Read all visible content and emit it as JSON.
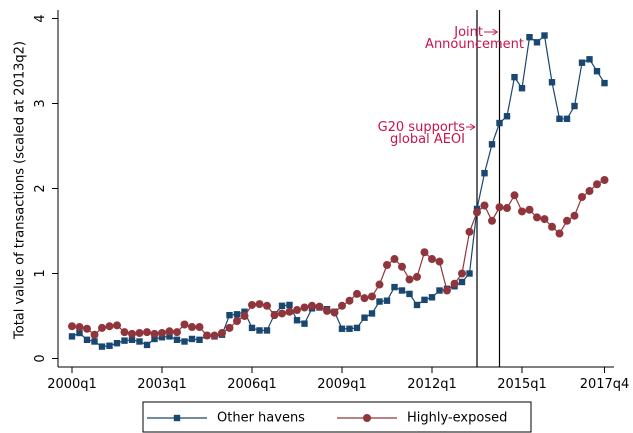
{
  "chart_data": {
    "type": "line",
    "y_label": "Total value of transactions (scaled at 2013q2)",
    "categories": [
      "2000q1",
      null,
      null,
      null,
      null,
      null,
      null,
      null,
      null,
      null,
      null,
      null,
      "2003q1",
      null,
      null,
      null,
      null,
      null,
      null,
      null,
      null,
      null,
      null,
      null,
      "2006q1",
      null,
      null,
      null,
      null,
      null,
      null,
      null,
      null,
      null,
      null,
      null,
      "2009q1",
      null,
      null,
      null,
      null,
      null,
      null,
      null,
      null,
      null,
      null,
      null,
      "2012q1",
      null,
      null,
      null,
      null,
      null,
      null,
      null,
      null,
      null,
      null,
      null,
      "2015q1",
      null,
      null,
      null,
      null,
      null,
      null,
      null,
      null,
      null,
      null,
      "2017q4"
    ],
    "series": [
      {
        "name": "Other havens",
        "color": "#1a476f",
        "marker": "square",
        "values": [
          0.26,
          0.3,
          0.22,
          0.2,
          0.14,
          0.15,
          0.18,
          0.21,
          0.22,
          0.2,
          0.16,
          0.23,
          0.25,
          0.26,
          0.22,
          0.2,
          0.23,
          0.22,
          0.27,
          0.26,
          0.28,
          0.51,
          0.52,
          0.55,
          0.36,
          0.33,
          0.33,
          0.52,
          0.62,
          0.63,
          0.45,
          0.41,
          0.59,
          0.6,
          0.58,
          0.55,
          0.35,
          0.35,
          0.36,
          0.48,
          0.53,
          0.67,
          0.68,
          0.84,
          0.8,
          0.76,
          0.63,
          0.69,
          0.72,
          0.8,
          0.82,
          0.85,
          0.9,
          1.0,
          1.76,
          2.18,
          2.52,
          2.77,
          2.85,
          3.31,
          3.18,
          3.78,
          3.72,
          3.8,
          3.25,
          2.82,
          2.82,
          2.97,
          3.48,
          3.52,
          3.38,
          3.24
        ]
      },
      {
        "name": "Highly-exposed",
        "color": "#90353b",
        "marker": "circle",
        "values": [
          0.38,
          0.37,
          0.35,
          0.28,
          0.36,
          0.38,
          0.39,
          0.31,
          0.29,
          0.3,
          0.31,
          0.29,
          0.3,
          0.32,
          0.31,
          0.4,
          0.37,
          0.37,
          0.27,
          0.27,
          0.3,
          0.36,
          0.44,
          0.5,
          0.63,
          0.64,
          0.62,
          0.51,
          0.53,
          0.55,
          0.57,
          0.6,
          0.62,
          0.61,
          0.56,
          0.54,
          0.62,
          0.68,
          0.76,
          0.71,
          0.73,
          0.87,
          1.1,
          1.17,
          1.08,
          0.93,
          0.96,
          1.25,
          1.17,
          1.14,
          0.8,
          0.88,
          1.0,
          1.49,
          1.72,
          1.8,
          1.62,
          1.78,
          1.77,
          1.92,
          1.73,
          1.75,
          1.66,
          1.64,
          1.55,
          1.47,
          1.62,
          1.68,
          1.9,
          1.97,
          2.05,
          2.1
        ]
      }
    ],
    "ylim": [
      -0.1,
      4.1
    ],
    "yticks": [
      0,
      1,
      2,
      3,
      4
    ],
    "annotations": [
      {
        "lines": [
          "G20 supports",
          "global AEOI"
        ]
      },
      {
        "lines": [
          "Joint",
          "Announcement"
        ]
      }
    ]
  }
}
